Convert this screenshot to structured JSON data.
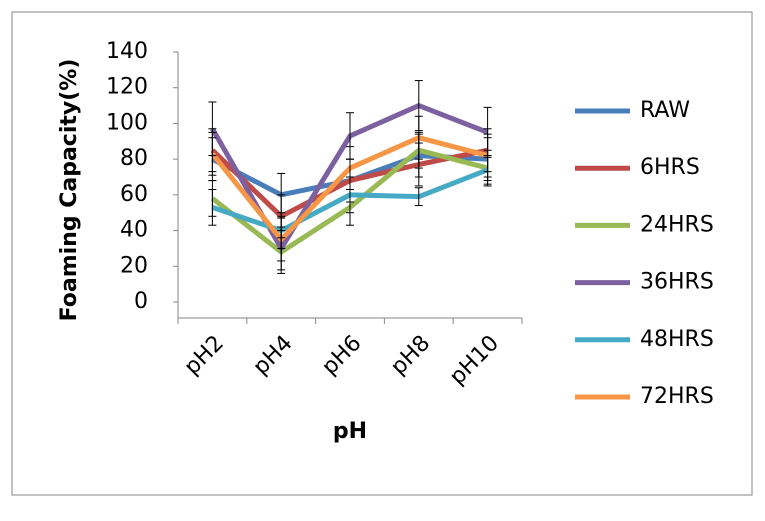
{
  "chart_data": {
    "type": "line",
    "x_label": "pH",
    "y_label": "Foaming Capacity(%)",
    "categories": [
      "pH2",
      "pH4",
      "pH6",
      "pH8",
      "pH10"
    ],
    "ylim": [
      0,
      140
    ],
    "yticks": [
      0,
      20,
      40,
      60,
      80,
      100,
      120,
      140
    ],
    "legend": "right",
    "series": [
      {
        "name": "RAW",
        "color": "#4a7ebb",
        "values": [
          80,
          60,
          68,
          82,
          80
        ],
        "errors": [
          12,
          12,
          12,
          12,
          12
        ]
      },
      {
        "name": "6HRS",
        "color": "#be4b48",
        "values": [
          85,
          48,
          68,
          77,
          85
        ],
        "errors": [
          12,
          12,
          12,
          12,
          12
        ]
      },
      {
        "name": "24HRS",
        "color": "#98b954",
        "values": [
          58,
          28,
          53,
          85,
          75
        ],
        "errors": [
          10,
          12,
          10,
          10,
          10
        ]
      },
      {
        "name": "36HRS",
        "color": "#7d60a0",
        "values": [
          97,
          30,
          93,
          110,
          95
        ],
        "errors": [
          15,
          12,
          13,
          14,
          14
        ]
      },
      {
        "name": "48HRS",
        "color": "#46aac5",
        "values": [
          53,
          40,
          60,
          59,
          74
        ],
        "errors": [
          10,
          10,
          10,
          5,
          8
        ]
      },
      {
        "name": "72HRS",
        "color": "#f79646",
        "values": [
          83,
          35,
          75,
          92,
          82
        ],
        "errors": [
          12,
          12,
          12,
          12,
          12
        ]
      }
    ]
  }
}
